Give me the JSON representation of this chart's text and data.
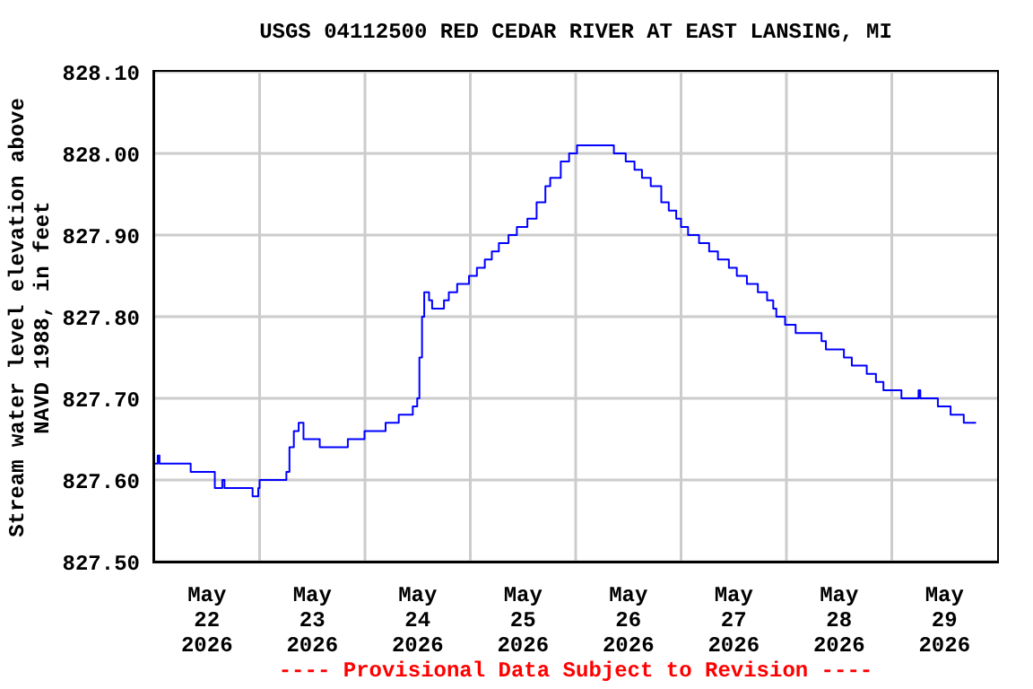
{
  "chart_data": {
    "type": "step",
    "title": "USGS 04112500 RED CEDAR RIVER AT EAST LANSING, MI",
    "ylabel": "Stream water level elevation above NAVD 1988, in feet",
    "annotations": [
      "---- Provisional Data Subject to Revision ----"
    ],
    "x": [
      "2026-05-22T00:00",
      "2026-05-22T00:48",
      "2026-05-22T01:12",
      "2026-05-22T08:18",
      "2026-05-22T13:48",
      "2026-05-22T15:30",
      "2026-05-22T16:00",
      "2026-05-22T22:24",
      "2026-05-22T23:42",
      "2026-05-23T00:00",
      "2026-05-23T06:06",
      "2026-05-23T06:48",
      "2026-05-23T07:48",
      "2026-05-23T08:54",
      "2026-05-23T10:00",
      "2026-05-23T13:42",
      "2026-05-23T20:06",
      "2026-05-23T23:54",
      "2026-05-24T04:42",
      "2026-05-24T07:42",
      "2026-05-24T10:54",
      "2026-05-24T11:54",
      "2026-05-24T12:24",
      "2026-05-24T13:00",
      "2026-05-24T13:30",
      "2026-05-24T14:36",
      "2026-05-24T15:18",
      "2026-05-24T18:00",
      "2026-05-24T19:06",
      "2026-05-24T21:00",
      "2026-05-24T23:42",
      "2026-05-25T01:30",
      "2026-05-25T03:18",
      "2026-05-25T04:54",
      "2026-05-25T06:30",
      "2026-05-25T08:42",
      "2026-05-25T10:36",
      "2026-05-25T13:00",
      "2026-05-25T15:06",
      "2026-05-25T17:06",
      "2026-05-25T18:12",
      "2026-05-25T20:36",
      "2026-05-25T22:30",
      "2026-05-26T00:18",
      "2026-05-26T08:42",
      "2026-05-26T11:24",
      "2026-05-26T13:24",
      "2026-05-26T15:06",
      "2026-05-26T17:06",
      "2026-05-26T19:30",
      "2026-05-26T21:12",
      "2026-05-26T22:54",
      "2026-05-27T00:00",
      "2026-05-27T01:36",
      "2026-05-27T04:06",
      "2026-05-27T06:24",
      "2026-05-27T08:24",
      "2026-05-27T10:54",
      "2026-05-27T12:42",
      "2026-05-27T15:00",
      "2026-05-27T17:30",
      "2026-05-27T19:36",
      "2026-05-27T21:00",
      "2026-05-27T21:42",
      "2026-05-27T23:42",
      "2026-05-28T02:06",
      "2026-05-28T08:00",
      "2026-05-28T09:00",
      "2026-05-28T13:06",
      "2026-05-28T14:54",
      "2026-05-28T18:18",
      "2026-05-28T20:24",
      "2026-05-28T22:06",
      "2026-05-29T02:12",
      "2026-05-29T06:06",
      "2026-05-29T06:30",
      "2026-05-29T10:30",
      "2026-05-29T13:24",
      "2026-05-29T16:24",
      "2026-05-29T19:12"
    ],
    "values": [
      827.62,
      827.63,
      827.62,
      827.61,
      827.59,
      827.6,
      827.59,
      827.58,
      827.59,
      827.6,
      827.61,
      827.64,
      827.66,
      827.67,
      827.65,
      827.64,
      827.65,
      827.66,
      827.67,
      827.68,
      827.69,
      827.7,
      827.75,
      827.8,
      827.83,
      827.82,
      827.81,
      827.82,
      827.83,
      827.84,
      827.85,
      827.86,
      827.87,
      827.88,
      827.89,
      827.9,
      827.91,
      827.92,
      827.94,
      827.96,
      827.97,
      827.99,
      828.0,
      828.01,
      828.0,
      827.99,
      827.98,
      827.97,
      827.96,
      827.94,
      827.93,
      827.92,
      827.91,
      827.9,
      827.89,
      827.88,
      827.87,
      827.86,
      827.85,
      827.84,
      827.83,
      827.82,
      827.81,
      827.8,
      827.79,
      827.78,
      827.77,
      827.76,
      827.75,
      827.74,
      827.73,
      827.72,
      827.71,
      827.7,
      827.71,
      827.7,
      827.69,
      827.68,
      827.67,
      827.67
    ],
    "color": "#0000ff",
    "xlim": [
      "2026-05-22",
      "2026-05-30"
    ],
    "xticks": [
      {
        "value": "2026-05-22T12:00",
        "label": "May 22 2026"
      },
      {
        "value": "2026-05-23T00:00",
        "label": null
      },
      {
        "value": "2026-05-23T12:00",
        "label": "May 23 2026"
      },
      {
        "value": "2026-05-24T00:00",
        "label": null
      },
      {
        "value": "2026-05-24T12:00",
        "label": "May 24 2026"
      },
      {
        "value": "2026-05-25T00:00",
        "label": null
      },
      {
        "value": "2026-05-25T12:00",
        "label": "May 25 2026"
      },
      {
        "value": "2026-05-26T00:00",
        "label": null
      },
      {
        "value": "2026-05-26T12:00",
        "label": "May 26 2026"
      },
      {
        "value": "2026-05-27T00:00",
        "label": null
      },
      {
        "value": "2026-05-27T12:00",
        "label": "May 27 2026"
      },
      {
        "value": "2026-05-28T00:00",
        "label": null
      },
      {
        "value": "2026-05-28T12:00",
        "label": "May 28 2026"
      },
      {
        "value": "2026-05-29T00:00",
        "label": null
      },
      {
        "value": "2026-05-29T12:00",
        "label": "May 29 2026"
      }
    ],
    "ylim": [
      827.5,
      828.1
    ],
    "yticks": [
      {
        "value": 827.5,
        "label": "827.50"
      },
      {
        "value": 827.6,
        "label": "827.60"
      },
      {
        "value": 827.7,
        "label": "827.70"
      },
      {
        "value": 827.8,
        "label": "827.80"
      },
      {
        "value": 827.9,
        "label": "827.90"
      },
      {
        "value": 828.0,
        "label": "828.00"
      },
      {
        "value": 828.1,
        "label": "828.10"
      }
    ],
    "grid": true
  }
}
